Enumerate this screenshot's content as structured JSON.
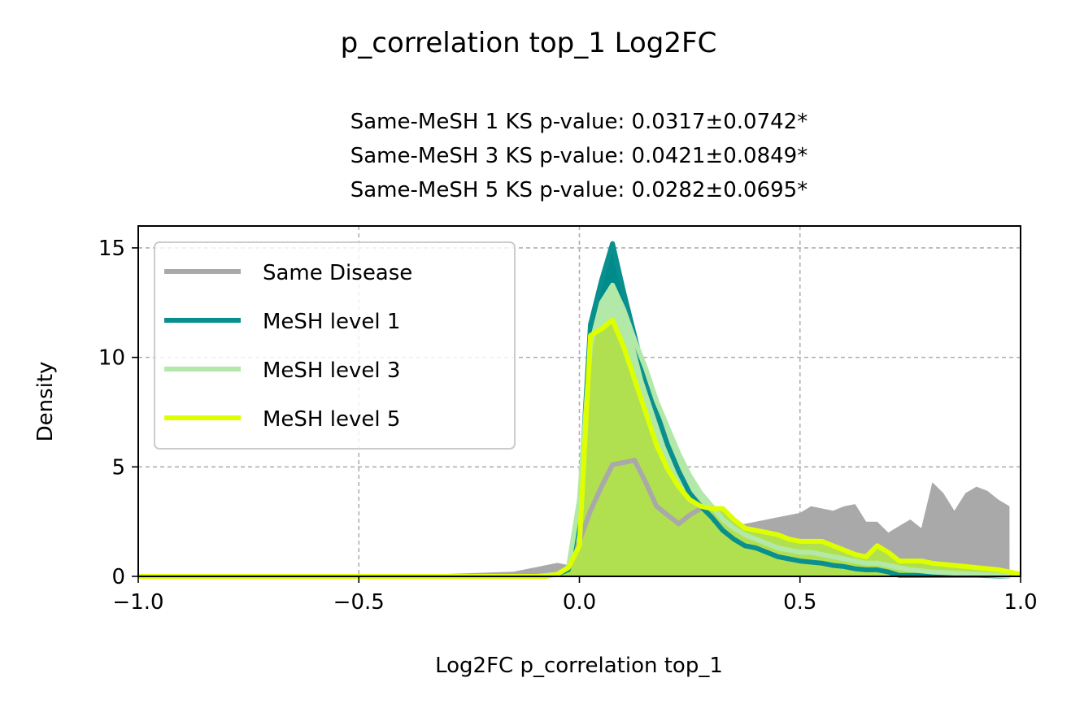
{
  "chart_data": {
    "type": "area",
    "title": "p_correlation top_1 Log2FC",
    "subtitle_lines": [
      "Same-MeSH 1 KS p-value: 0.0317±0.0742*",
      "Same-MeSH 3 KS p-value: 0.0421±0.0849*",
      "Same-MeSH 5 KS p-value: 0.0282±0.0695*"
    ],
    "xlabel": "Log2FC p_correlation top_1",
    "ylabel": "Density",
    "xlim": [
      -1.0,
      1.0
    ],
    "ylim": [
      0,
      16
    ],
    "xticks": [
      -1.0,
      -0.5,
      0.0,
      0.5,
      1.0
    ],
    "xtick_labels": [
      "−1.0",
      "−0.5",
      "0.0",
      "0.5",
      "1.0"
    ],
    "yticks": [
      0,
      5,
      10,
      15
    ],
    "ytick_labels": [
      "0",
      "5",
      "10",
      "15"
    ],
    "grid": true,
    "legend_position": "upper-left",
    "series": [
      {
        "name": "Same Disease",
        "color": "#a9a9a9",
        "fill_color": "#a9a9a9",
        "line_color": "#a9a9a9",
        "x": [
          -1.0,
          -0.3,
          -0.15,
          -0.1,
          -0.05,
          -0.025,
          0.0,
          0.025,
          0.05,
          0.075,
          0.1,
          0.125,
          0.15,
          0.175,
          0.2,
          0.225,
          0.25,
          0.275,
          0.3,
          0.325,
          0.35,
          0.375,
          0.4,
          0.425,
          0.45,
          0.475,
          0.5,
          0.525,
          0.55,
          0.575,
          0.6,
          0.625,
          0.65,
          0.675,
          0.7,
          0.725,
          0.75,
          0.775,
          0.8,
          0.825,
          0.85,
          0.875,
          0.9,
          0.925,
          0.95,
          0.975
        ],
        "y": [
          0,
          0,
          0.1,
          0.3,
          0.5,
          0.4,
          1.6,
          3.0,
          4.1,
          5.1,
          5.2,
          5.3,
          4.3,
          3.2,
          2.8,
          2.4,
          2.8,
          3.1,
          3.2,
          2.9,
          2.4,
          2.4,
          2.5,
          2.6,
          2.7,
          2.8,
          2.9,
          3.2,
          3.1,
          3.0,
          3.2,
          3.3,
          2.5,
          2.5,
          2.0,
          2.3,
          2.6,
          2.2,
          4.3,
          3.8,
          3.0,
          3.8,
          4.1,
          3.9,
          3.5,
          3.2
        ],
        "line_drawn_until": 0.275
      },
      {
        "name": "MeSH level 1",
        "color": "#008b8b",
        "fill_color": "#008b8b",
        "line_color": "#0a8f8f",
        "x": [
          -1.0,
          -0.1,
          -0.05,
          -0.025,
          0.0,
          0.025,
          0.05,
          0.075,
          0.1,
          0.125,
          0.15,
          0.175,
          0.2,
          0.225,
          0.25,
          0.275,
          0.3,
          0.325,
          0.35,
          0.375,
          0.4,
          0.425,
          0.45,
          0.475,
          0.5,
          0.525,
          0.55,
          0.575,
          0.6,
          0.625,
          0.65,
          0.675,
          0.7,
          0.725,
          0.75,
          0.8,
          0.85,
          0.9,
          0.95,
          0.975
        ],
        "y": [
          0,
          0,
          0.1,
          0.3,
          3.0,
          11.5,
          13.5,
          15.2,
          13.0,
          11.0,
          9.0,
          7.5,
          6.0,
          4.8,
          3.8,
          3.2,
          2.7,
          2.1,
          1.7,
          1.4,
          1.3,
          1.1,
          0.9,
          0.8,
          0.7,
          0.65,
          0.6,
          0.5,
          0.45,
          0.35,
          0.3,
          0.3,
          0.2,
          0.05,
          0.05,
          0.05,
          0.05,
          0.05,
          0.02,
          0.02
        ]
      },
      {
        "name": "MeSH level 3",
        "color": "#b2e8a8",
        "fill_color": "#b2e8a8",
        "line_color": "#b2e8a8",
        "x": [
          -1.0,
          -0.1,
          -0.05,
          -0.025,
          0.0,
          0.025,
          0.05,
          0.075,
          0.1,
          0.125,
          0.15,
          0.175,
          0.2,
          0.225,
          0.25,
          0.275,
          0.3,
          0.325,
          0.35,
          0.375,
          0.4,
          0.425,
          0.45,
          0.475,
          0.5,
          0.525,
          0.55,
          0.575,
          0.6,
          0.625,
          0.65,
          0.675,
          0.7,
          0.725,
          0.75,
          0.8,
          0.85,
          0.9,
          0.95,
          0.975
        ],
        "y": [
          0,
          0,
          0.1,
          0.4,
          3.5,
          10.5,
          12.5,
          13.3,
          12.2,
          10.8,
          9.5,
          8.0,
          6.8,
          5.6,
          4.6,
          3.8,
          3.2,
          2.6,
          2.2,
          1.9,
          1.7,
          1.5,
          1.3,
          1.2,
          1.1,
          1.1,
          1.0,
          0.9,
          0.8,
          0.7,
          0.6,
          0.6,
          0.5,
          0.4,
          0.3,
          0.2,
          0.15,
          0.1,
          0.05,
          0.02
        ]
      },
      {
        "name": "MeSH level 5",
        "color": "#ddff00",
        "fill_color": "#b0e050",
        "line_color": "#ddff00",
        "x": [
          -1.0,
          -0.15,
          -0.1,
          -0.075,
          -0.05,
          -0.025,
          0.0,
          0.025,
          0.05,
          0.075,
          0.1,
          0.125,
          0.15,
          0.175,
          0.2,
          0.225,
          0.25,
          0.275,
          0.3,
          0.325,
          0.35,
          0.375,
          0.4,
          0.425,
          0.45,
          0.475,
          0.5,
          0.525,
          0.55,
          0.575,
          0.6,
          0.625,
          0.65,
          0.675,
          0.7,
          0.725,
          0.75,
          0.775,
          0.8,
          0.825,
          0.85,
          0.875,
          0.9,
          0.925,
          0.95,
          0.975,
          1.0
        ],
        "y": [
          0,
          0,
          0,
          0,
          0.1,
          0.4,
          1.4,
          11.0,
          11.3,
          11.7,
          10.5,
          9.0,
          7.5,
          6.0,
          4.9,
          4.1,
          3.5,
          3.2,
          3.1,
          3.1,
          2.6,
          2.2,
          2.1,
          2.0,
          1.9,
          1.7,
          1.6,
          1.6,
          1.6,
          1.4,
          1.2,
          1.0,
          0.9,
          1.4,
          1.1,
          0.7,
          0.7,
          0.7,
          0.6,
          0.55,
          0.5,
          0.45,
          0.4,
          0.35,
          0.3,
          0.2,
          0.1
        ]
      }
    ]
  }
}
